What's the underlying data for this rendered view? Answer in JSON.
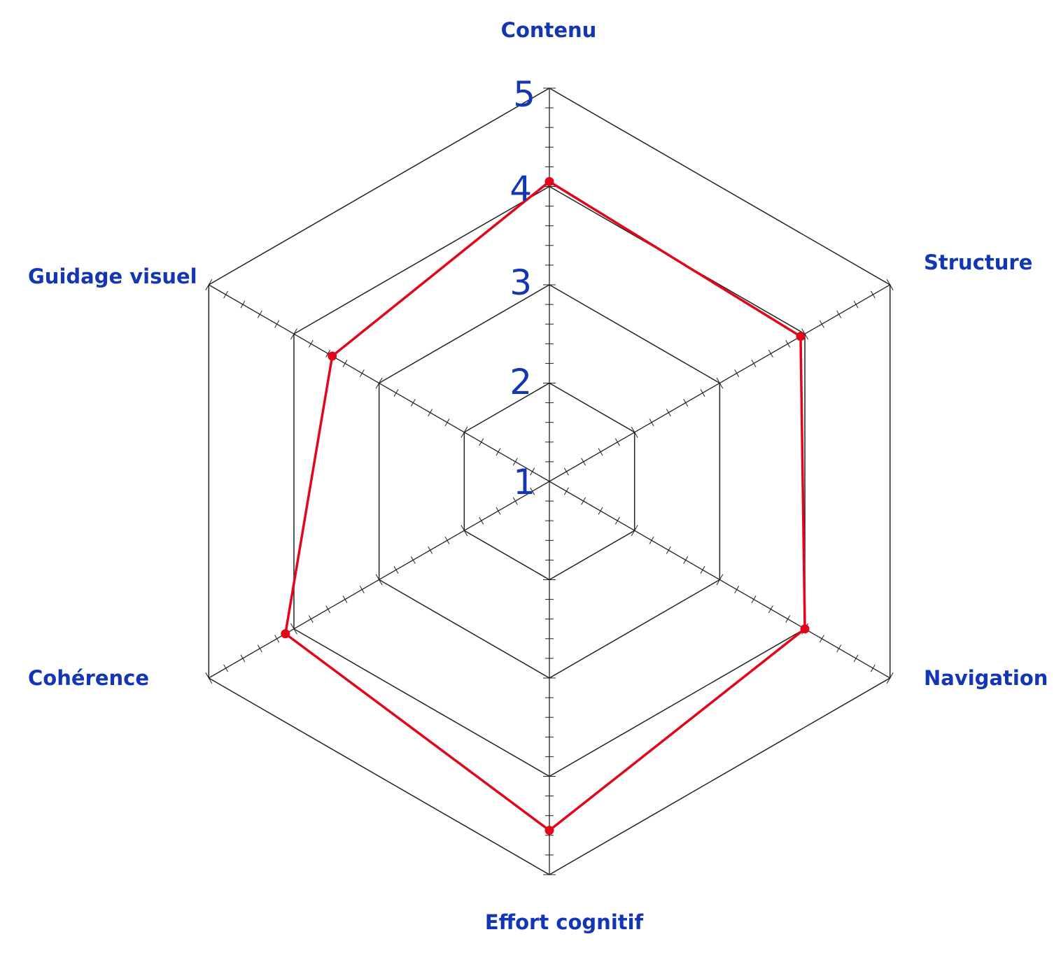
{
  "chart_data": {
    "type": "radar",
    "axes": [
      "Contenu",
      "Structure",
      "Navigation",
      "Effort cognitif",
      "Cohérence",
      "Guidage visuel"
    ],
    "scale": {
      "min": 1,
      "max": 5,
      "ring_labels": [
        "1",
        "2",
        "3",
        "4",
        "5"
      ],
      "minor_ticks_per_unit": 5
    },
    "series": [
      {
        "values": [
          4.05,
          3.95,
          4.0,
          4.55,
          4.1,
          3.55
        ],
        "color": "#e3061b"
      }
    ],
    "colors": {
      "label_text": "#1336b4",
      "grid": "#222222"
    },
    "legend": "none"
  }
}
